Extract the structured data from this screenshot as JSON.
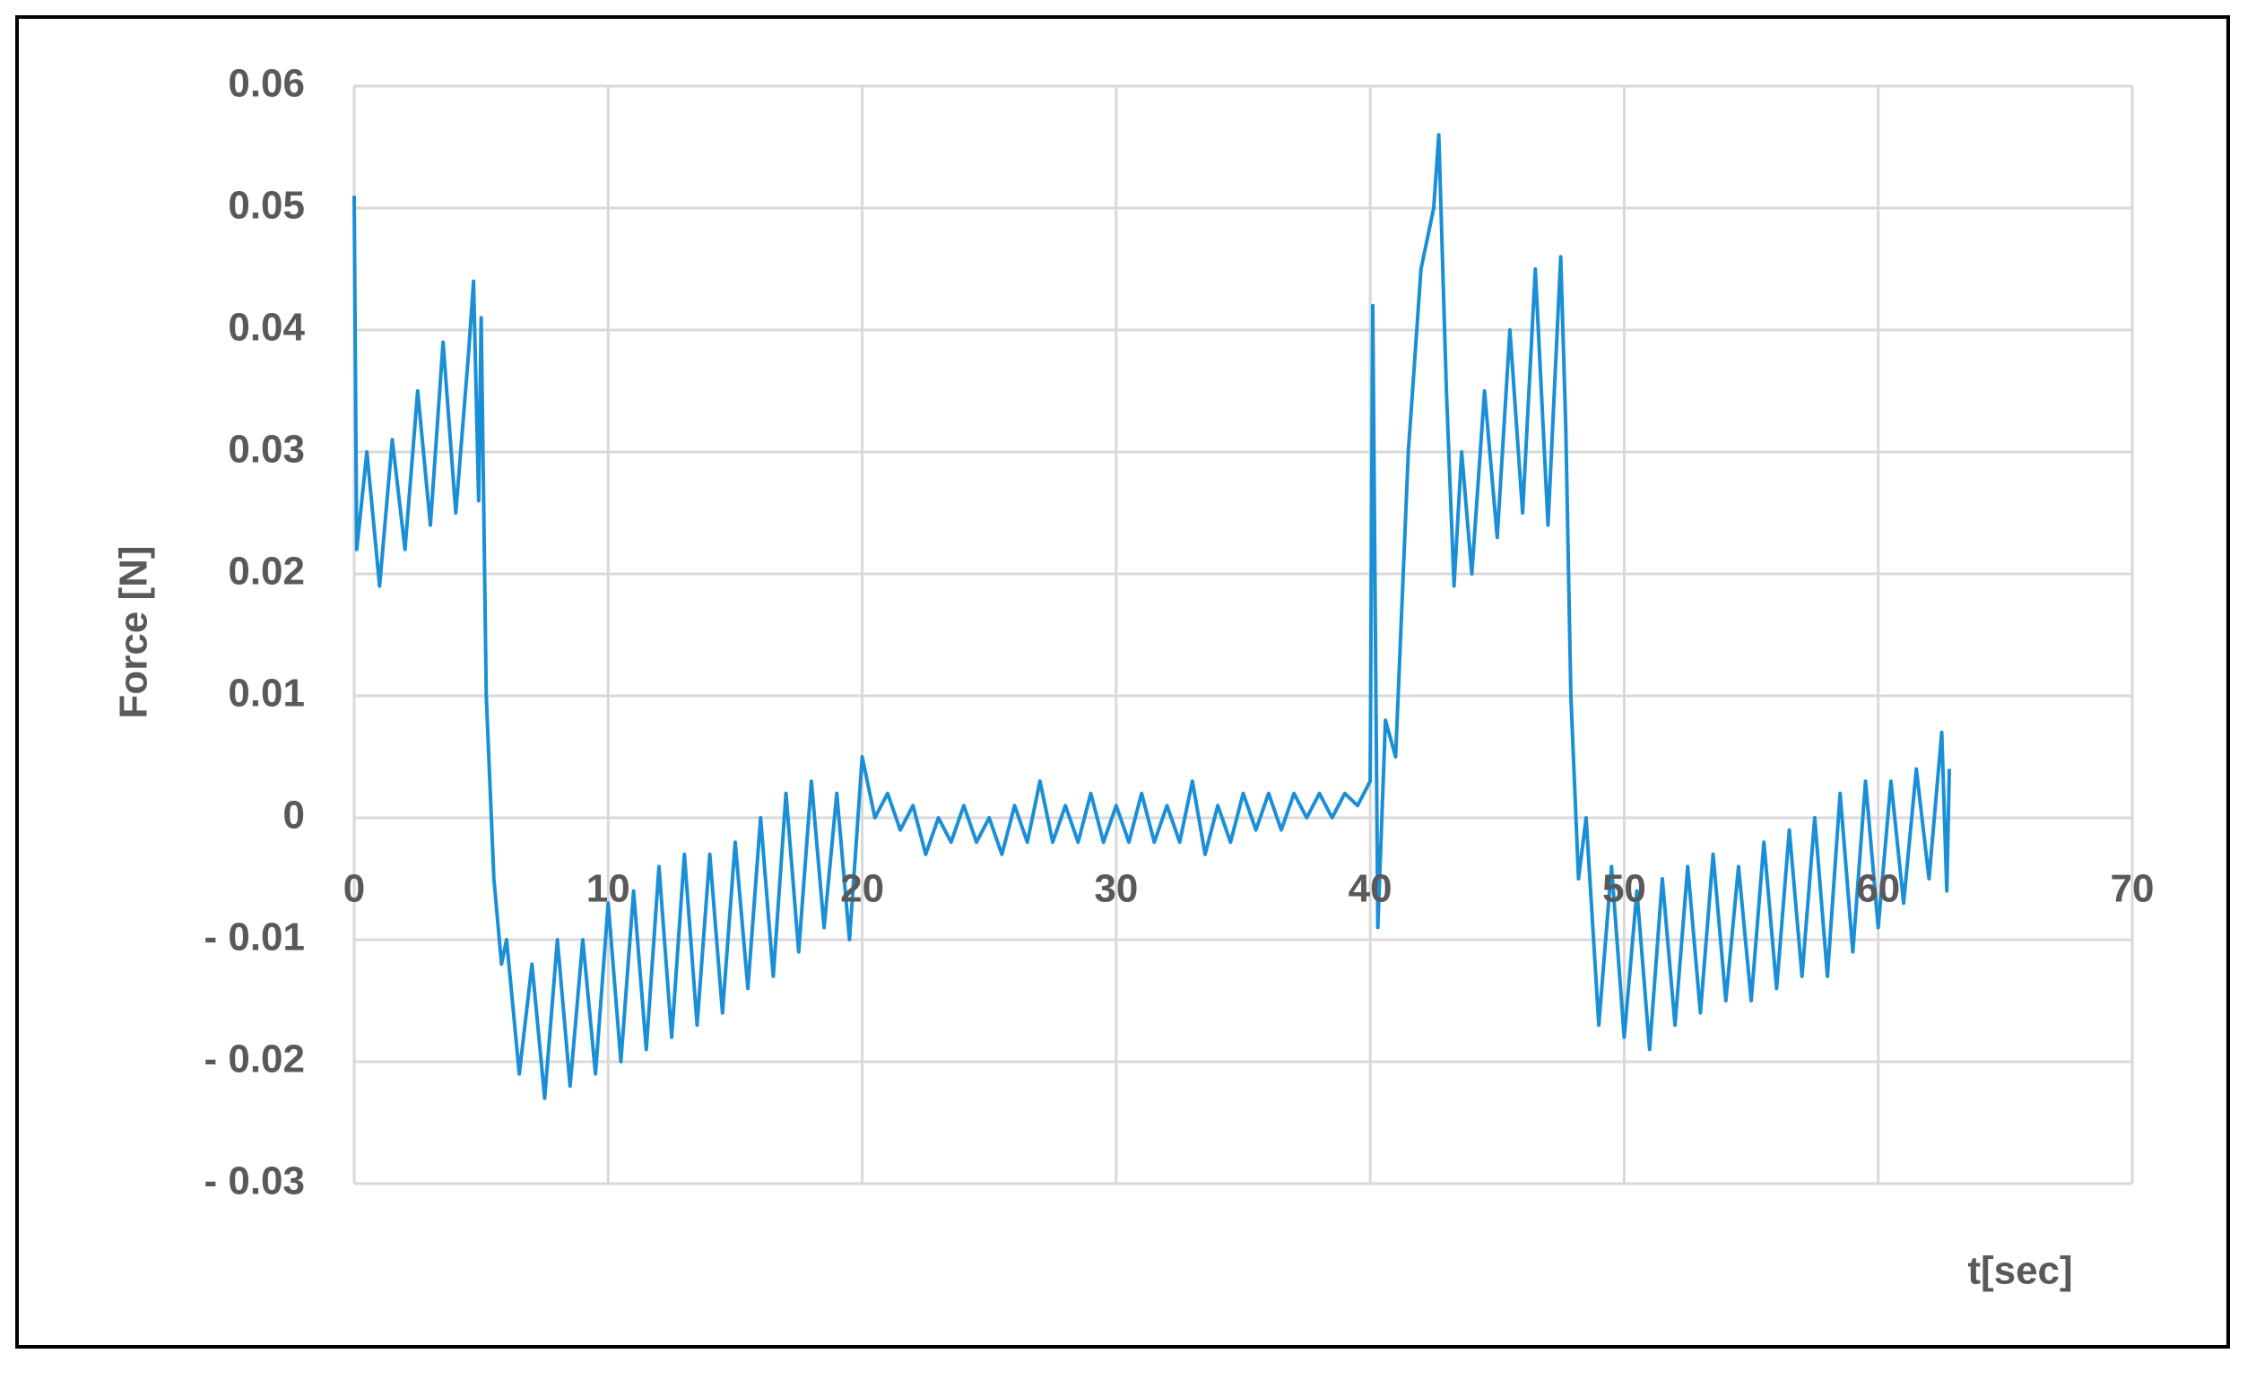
{
  "chart_data": {
    "type": "line",
    "xlabel": "t[sec]",
    "ylabel": "Force [N]",
    "color": "#1a8fd6",
    "grid": true,
    "xlim": [
      0,
      70
    ],
    "xticks": [
      0,
      10,
      20,
      30,
      40,
      50,
      60,
      70
    ],
    "ylim": [
      -0.03,
      0.06
    ],
    "yticks": [
      {
        "value": -0.03,
        "label": "- 0.03"
      },
      {
        "value": -0.02,
        "label": "- 0.02"
      },
      {
        "value": -0.01,
        "label": "- 0.01"
      },
      0,
      0.01,
      0.02,
      0.03,
      0.04,
      0.05,
      0.06
    ],
    "x": [
      0,
      0.1,
      0.5,
      1.0,
      1.5,
      2.0,
      2.5,
      3.0,
      3.5,
      4.0,
      4.5,
      4.7,
      4.9,
      5.0,
      5.2,
      5.5,
      5.8,
      6.0,
      6.5,
      7.0,
      7.5,
      8.0,
      8.5,
      9.0,
      9.5,
      10.0,
      10.5,
      11.0,
      11.5,
      12.0,
      12.5,
      13.0,
      13.5,
      14.0,
      14.5,
      15.0,
      15.5,
      16.0,
      16.5,
      17.0,
      17.5,
      18.0,
      18.5,
      19.0,
      19.5,
      20.0,
      20.5,
      21.0,
      21.5,
      22.0,
      22.5,
      23.0,
      23.5,
      24.0,
      24.5,
      25.0,
      25.5,
      26.0,
      26.5,
      27.0,
      27.5,
      28.0,
      28.5,
      29.0,
      29.5,
      30.0,
      30.5,
      31.0,
      31.5,
      32.0,
      32.5,
      33.0,
      33.5,
      34.0,
      34.5,
      35.0,
      35.5,
      36.0,
      36.5,
      37.0,
      37.5,
      38.0,
      38.5,
      39.0,
      39.5,
      40.0,
      40.1,
      40.3,
      40.6,
      41.0,
      41.5,
      42.0,
      42.5,
      42.7,
      43.0,
      43.3,
      43.6,
      44.0,
      44.5,
      45.0,
      45.5,
      46.0,
      46.5,
      47.0,
      47.5,
      47.7,
      47.9,
      48.2,
      48.5,
      49.0,
      49.5,
      50.0,
      50.5,
      51.0,
      51.5,
      52.0,
      52.5,
      53.0,
      53.5,
      54.0,
      54.5,
      55.0,
      55.5,
      56.0,
      56.5,
      57.0,
      57.5,
      58.0,
      58.5,
      59.0,
      59.5,
      60.0,
      60.5,
      61.0,
      61.5,
      62.0,
      62.5,
      62.7,
      62.8
    ],
    "values": [
      0.051,
      0.022,
      0.03,
      0.019,
      0.031,
      0.022,
      0.035,
      0.024,
      0.039,
      0.025,
      0.038,
      0.044,
      0.026,
      0.041,
      0.01,
      -0.005,
      -0.012,
      -0.01,
      -0.021,
      -0.012,
      -0.023,
      -0.01,
      -0.022,
      -0.01,
      -0.021,
      -0.007,
      -0.02,
      -0.006,
      -0.019,
      -0.004,
      -0.018,
      -0.003,
      -0.017,
      -0.003,
      -0.016,
      -0.002,
      -0.014,
      0.0,
      -0.013,
      0.002,
      -0.011,
      0.003,
      -0.009,
      0.002,
      -0.01,
      0.005,
      0.0,
      0.002,
      -0.001,
      0.001,
      -0.003,
      0.0,
      -0.002,
      0.001,
      -0.002,
      0.0,
      -0.003,
      0.001,
      -0.002,
      0.003,
      -0.002,
      0.001,
      -0.002,
      0.002,
      -0.002,
      0.001,
      -0.002,
      0.002,
      -0.002,
      0.001,
      -0.002,
      0.003,
      -0.003,
      0.001,
      -0.002,
      0.002,
      -0.001,
      0.002,
      -0.001,
      0.002,
      0.0,
      0.002,
      0.0,
      0.002,
      0.001,
      0.003,
      0.042,
      -0.009,
      0.008,
      0.005,
      0.03,
      0.045,
      0.05,
      0.056,
      0.035,
      0.019,
      0.03,
      0.02,
      0.035,
      0.023,
      0.04,
      0.025,
      0.045,
      0.024,
      0.046,
      0.032,
      0.01,
      -0.005,
      0.0,
      -0.017,
      -0.004,
      -0.018,
      -0.006,
      -0.019,
      -0.005,
      -0.017,
      -0.004,
      -0.016,
      -0.003,
      -0.015,
      -0.004,
      -0.015,
      -0.002,
      -0.014,
      -0.001,
      -0.013,
      0.0,
      -0.013,
      0.002,
      -0.011,
      0.003,
      -0.009,
      0.003,
      -0.007,
      0.004,
      -0.005,
      0.007,
      -0.006,
      0.004
    ]
  }
}
